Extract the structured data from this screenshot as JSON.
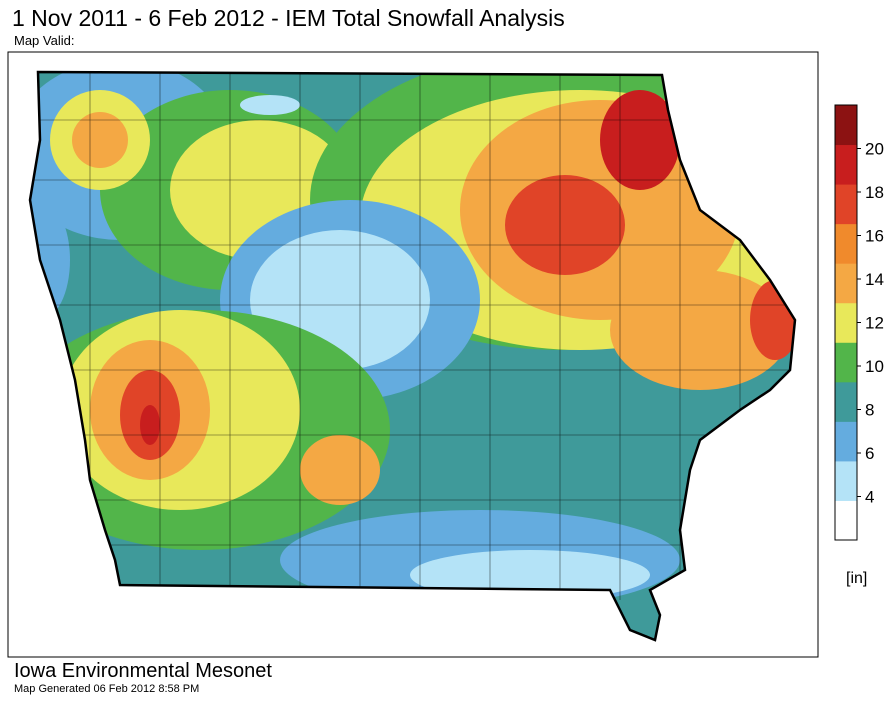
{
  "header": {
    "title": "1 Nov 2011 - 6 Feb 2012 - IEM Total Snowfall Analysis",
    "subtitle": "Map Valid:"
  },
  "legend": {
    "range": [
      2,
      22
    ],
    "ticks": [
      4,
      6,
      8,
      10,
      12,
      14,
      16,
      18,
      20
    ],
    "unit": "[in]",
    "colors": [
      "#ffffff",
      "#b4e3f7",
      "#64acdf",
      "#3f9a9a",
      "#52b54a",
      "#e8e85a",
      "#f4a844",
      "#f08a2c",
      "#e04428",
      "#c81e1e",
      "#8c1212"
    ]
  },
  "footer": {
    "org": "Iowa Environmental Mesonet",
    "generated": "Map Generated 06 Feb 2012 8:58 PM"
  }
}
